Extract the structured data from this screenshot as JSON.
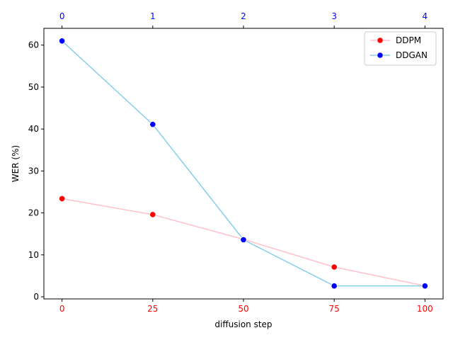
{
  "chart_data": {
    "type": "line",
    "title": "",
    "xlabel": "diffusion step",
    "ylabel": "WER (%)",
    "xlim": [
      -5,
      105
    ],
    "ylim": [
      -0.5,
      64
    ],
    "x_ticks": [
      0,
      25,
      50,
      75,
      100
    ],
    "y_ticks": [
      0,
      10,
      20,
      30,
      40,
      50,
      60
    ],
    "x_tick_color": "#ff0000",
    "top_axis": {
      "ticks": [
        0,
        1,
        2,
        3,
        4
      ],
      "tick_color": "#0000ff"
    },
    "legend_position": "top-right",
    "grid": false,
    "series": [
      {
        "name": "DDPM",
        "line_color": "#ffc0cb",
        "marker_color": "#ff0000",
        "x": [
          0,
          25,
          50,
          75,
          100
        ],
        "y": [
          23.4,
          19.6,
          13.7,
          7.1,
          2.6
        ]
      },
      {
        "name": "DDGAN",
        "line_color": "#87ceeb",
        "marker_color": "#0000ff",
        "x": [
          0,
          25,
          50,
          75,
          100
        ],
        "y": [
          61.0,
          41.1,
          13.6,
          2.6,
          2.6
        ]
      }
    ]
  }
}
